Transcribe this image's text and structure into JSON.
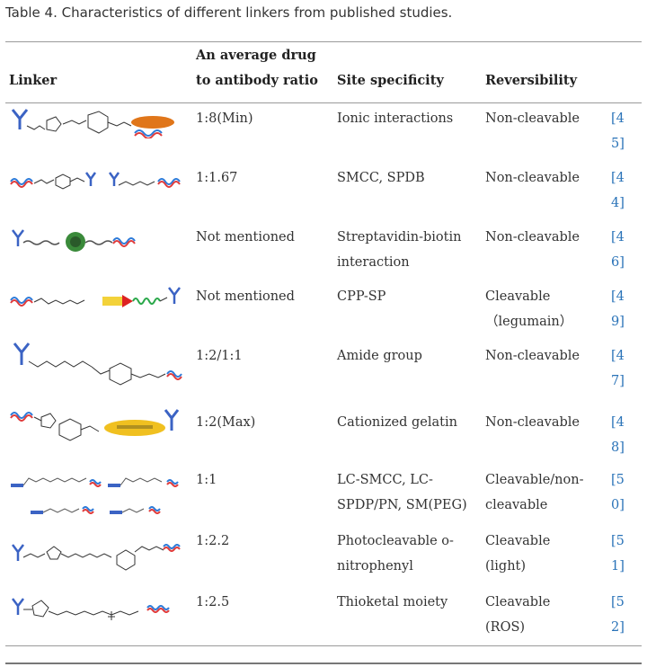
{
  "caption": "Table 4. Characteristics of different linkers from published studies.",
  "headers": {
    "linker": "Linker",
    "ratio": "An average drug to antibody ratio",
    "site": "Site specificity",
    "reversibility": "Reversibility"
  },
  "rows": [
    {
      "ratio": "1:8(Min)",
      "site": "Ionic interactions",
      "rev": "Non-cleavable",
      "ref": "[45]",
      "icon": "mal-cyclohexyl-antibody-drug-structure-icon"
    },
    {
      "ratio": "1:1.67",
      "site": "SMCC, SPDB",
      "rev": "Non-cleavable",
      "ref": "[44]",
      "icon": "smcc-spdb-structure-icon"
    },
    {
      "ratio": "Not mentioned",
      "site": "Streptavidin-biotin interaction",
      "rev": "Non-cleavable",
      "ref": "[46]",
      "icon": "streptavidin-biotin-structure-icon"
    },
    {
      "ratio": "Not mentioned",
      "site": "CPP-SP",
      "rev": "Cleavable\n（legumain）",
      "ref": "[49]",
      "icon": "cpp-sp-structure-icon"
    },
    {
      "ratio": "1:2/1:1",
      "site": "Amide group",
      "rev": "Non-cleavable",
      "ref": "[47]",
      "icon": "amide-linker-structure-icon"
    },
    {
      "ratio": "1:2(Max)",
      "site": "Cationized gelatin",
      "rev": "Non-cleavable",
      "ref": "[48]",
      "icon": "cationized-gelatin-structure-icon"
    },
    {
      "ratio": "1:1",
      "site": "LC-SMCC, LC-SPDP/PN, SM(PEG)",
      "rev": "Cleavable/non-cleavable",
      "ref": "[50]",
      "icon": "lc-smcc-spdp-structure-icon"
    },
    {
      "ratio": "1:2.2",
      "site": "Photocleavable o-nitrophenyl",
      "rev": "Cleavable (light)",
      "ref": "[51]",
      "icon": "photocleavable-linker-structure-icon"
    },
    {
      "ratio": "1:2.5",
      "site": "Thioketal moiety",
      "rev": "Cleavable (ROS)",
      "ref": "[52]",
      "icon": "thioketal-linker-structure-icon"
    }
  ]
}
